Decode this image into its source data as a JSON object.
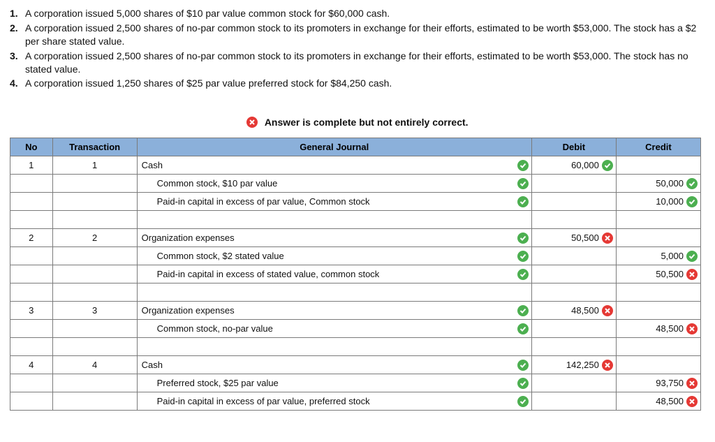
{
  "questions": [
    {
      "num": "1.",
      "text": "A corporation issued 5,000 shares of $10 par value common stock for $60,000 cash."
    },
    {
      "num": "2.",
      "text": "A corporation issued 2,500 shares of no-par common stock to its promoters in exchange for their efforts, estimated to be worth $53,000. The stock has a $2 per share stated value."
    },
    {
      "num": "3.",
      "text": "A corporation issued 2,500 shares of no-par common stock to its promoters in exchange for their efforts, estimated to be worth $53,000. The stock has no stated value."
    },
    {
      "num": "4.",
      "text": "A corporation issued 1,250 shares of $25 par value preferred stock for $84,250 cash."
    }
  ],
  "banner": "Answer is complete but not entirely correct.",
  "headers": {
    "no": "No",
    "trn": "Transaction",
    "gj": "General Journal",
    "debit": "Debit",
    "credit": "Credit"
  },
  "rows": [
    {
      "no": "1",
      "trn": "1",
      "acct": "Cash",
      "indent": 0,
      "acctMark": "ok",
      "debit": "60,000",
      "debitMark": "ok",
      "credit": "",
      "creditMark": ""
    },
    {
      "no": "",
      "trn": "",
      "acct": "Common stock, $10 par value",
      "indent": 1,
      "acctMark": "ok",
      "debit": "",
      "debitMark": "",
      "credit": "50,000",
      "creditMark": "ok"
    },
    {
      "no": "",
      "trn": "",
      "acct": "Paid-in capital in excess of par value, Common stock",
      "indent": 1,
      "acctMark": "ok",
      "debit": "",
      "debitMark": "",
      "credit": "10,000",
      "creditMark": "ok"
    },
    {
      "no": "",
      "trn": "",
      "acct": "",
      "indent": 0,
      "acctMark": "",
      "debit": "",
      "debitMark": "",
      "credit": "",
      "creditMark": ""
    },
    {
      "no": "2",
      "trn": "2",
      "acct": "Organization expenses",
      "indent": 0,
      "acctMark": "ok",
      "debit": "50,500",
      "debitMark": "bad",
      "credit": "",
      "creditMark": ""
    },
    {
      "no": "",
      "trn": "",
      "acct": "Common stock, $2 stated value",
      "indent": 1,
      "acctMark": "ok",
      "debit": "",
      "debitMark": "",
      "credit": "5,000",
      "creditMark": "ok"
    },
    {
      "no": "",
      "trn": "",
      "acct": "Paid-in capital in excess of stated value, common stock",
      "indent": 1,
      "acctMark": "ok",
      "debit": "",
      "debitMark": "",
      "credit": "50,500",
      "creditMark": "bad"
    },
    {
      "no": "",
      "trn": "",
      "acct": "",
      "indent": 0,
      "acctMark": "",
      "debit": "",
      "debitMark": "",
      "credit": "",
      "creditMark": ""
    },
    {
      "no": "3",
      "trn": "3",
      "acct": "Organization expenses",
      "indent": 0,
      "acctMark": "ok",
      "debit": "48,500",
      "debitMark": "bad",
      "credit": "",
      "creditMark": ""
    },
    {
      "no": "",
      "trn": "",
      "acct": "Common stock, no-par value",
      "indent": 1,
      "acctMark": "ok",
      "debit": "",
      "debitMark": "",
      "credit": "48,500",
      "creditMark": "bad"
    },
    {
      "no": "",
      "trn": "",
      "acct": "",
      "indent": 0,
      "acctMark": "",
      "debit": "",
      "debitMark": "",
      "credit": "",
      "creditMark": ""
    },
    {
      "no": "4",
      "trn": "4",
      "acct": "Cash",
      "indent": 0,
      "acctMark": "ok",
      "debit": "142,250",
      "debitMark": "bad",
      "credit": "",
      "creditMark": ""
    },
    {
      "no": "",
      "trn": "",
      "acct": "Preferred stock, $25 par value",
      "indent": 1,
      "acctMark": "ok",
      "debit": "",
      "debitMark": "",
      "credit": "93,750",
      "creditMark": "bad"
    },
    {
      "no": "",
      "trn": "",
      "acct": "Paid-in capital in excess of par value, preferred stock",
      "indent": 1,
      "acctMark": "ok",
      "debit": "",
      "debitMark": "",
      "credit": "48,500",
      "creditMark": "bad"
    }
  ],
  "colors": {
    "header_bg": "#8bb0da",
    "ok": "#4caf50",
    "bad": "#e53935",
    "border": "#7a7a7a"
  }
}
